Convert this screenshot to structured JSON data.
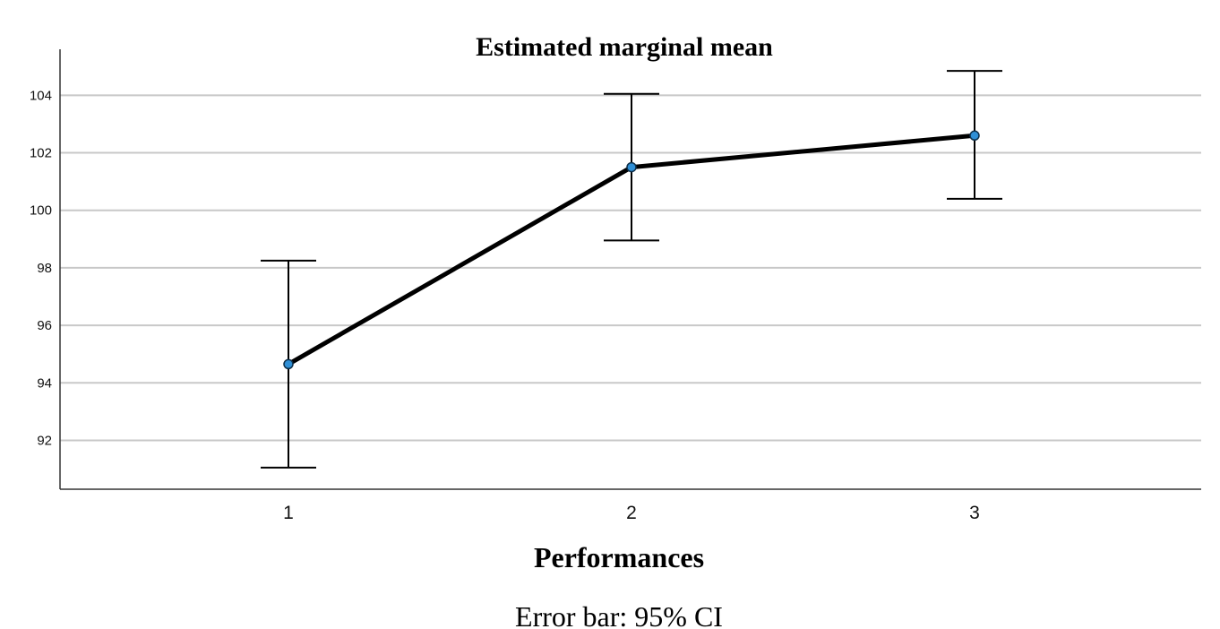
{
  "chart_data": {
    "type": "line",
    "title": "Estimated marginal mean",
    "xlabel": "Performances",
    "ylabel": "",
    "caption": "Error bar: 95% CI",
    "categories": [
      "1",
      "2",
      "3"
    ],
    "series": [
      {
        "values": [
          94.65,
          101.5,
          102.6
        ],
        "ci_lower": [
          91.05,
          98.95,
          100.4
        ],
        "ci_upper": [
          98.25,
          104.05,
          104.85
        ]
      }
    ],
    "yticks": [
      92,
      94,
      96,
      98,
      100,
      102,
      104
    ],
    "ytick_labels": [
      "92",
      "94",
      "96",
      "98",
      "100",
      "102",
      "104"
    ],
    "ylim": [
      90.3,
      105.6
    ],
    "grid": true,
    "colors": {
      "line": "#000000",
      "marker": "#2f8fd6",
      "grid": "#c8c8c8"
    }
  }
}
